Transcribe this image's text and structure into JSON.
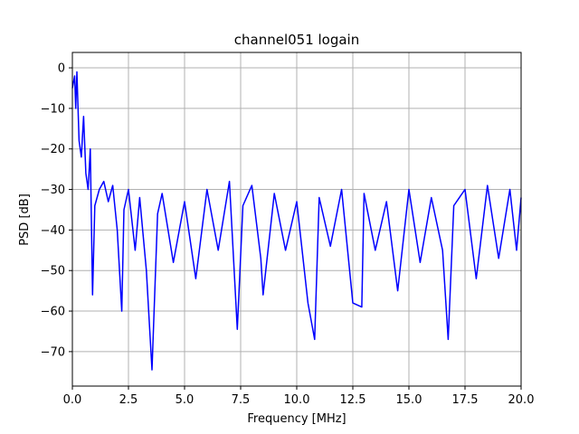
{
  "chart_data": {
    "type": "line",
    "title": "channel051 logain",
    "xlabel": "Frequency [MHz]",
    "ylabel": "PSD [dB]",
    "xlim": [
      0,
      20
    ],
    "ylim": [
      -78.5,
      3.8
    ],
    "xticks": [
      0,
      2.5,
      5,
      7.5,
      10,
      12.5,
      15,
      17.5,
      20
    ],
    "xtick_labels": [
      "0.0",
      "2.5",
      "5.0",
      "7.5",
      "10.0",
      "12.5",
      "15.0",
      "17.5",
      "20.0"
    ],
    "yticks": [
      0,
      -10,
      -20,
      -30,
      -40,
      -50,
      -60,
      -70
    ],
    "ytick_labels": [
      "0",
      "−10",
      "−20",
      "−30",
      "−40",
      "−50",
      "−60",
      "−70"
    ],
    "grid": true,
    "series_color": "#0000ff",
    "series": [
      {
        "x": [
          0.0,
          0.1,
          0.15,
          0.2,
          0.3,
          0.4,
          0.5,
          0.6,
          0.7,
          0.8,
          0.9,
          1.0,
          1.2,
          1.4,
          1.6,
          1.8,
          2.0,
          2.2,
          2.3,
          2.5,
          2.8,
          3.0,
          3.3,
          3.55,
          3.8,
          4.0,
          4.5,
          5.0,
          5.5,
          6.0,
          6.5,
          7.0,
          7.35,
          7.6,
          8.0,
          8.4,
          8.5,
          9.0,
          9.5,
          10.0,
          10.5,
          10.8,
          11.0,
          11.5,
          12.0,
          12.5,
          12.9,
          13.0,
          13.5,
          14.0,
          14.5,
          15.0,
          15.5,
          16.0,
          16.5,
          16.75,
          17.0,
          17.5,
          18.0,
          18.5,
          19.0,
          19.5,
          19.8,
          20.0
        ],
        "y": [
          -5,
          -2,
          -10,
          -1,
          -18,
          -22,
          -12,
          -26,
          -30,
          -20,
          -56,
          -34,
          -30,
          -28,
          -33,
          -29,
          -40,
          -60,
          -35,
          -30,
          -45,
          -32,
          -50,
          -74.5,
          -36,
          -31,
          -48,
          -33,
          -52,
          -30,
          -45,
          -28,
          -64.5,
          -34,
          -29,
          -47,
          -56,
          -31,
          -45,
          -33,
          -58,
          -67,
          -32,
          -44,
          -30,
          -58,
          -59,
          -31,
          -45,
          -33,
          -55,
          -30,
          -48,
          -32,
          -45,
          -67,
          -34,
          -30,
          -52,
          -29,
          -47,
          -30,
          -45,
          -32
        ]
      }
    ]
  }
}
